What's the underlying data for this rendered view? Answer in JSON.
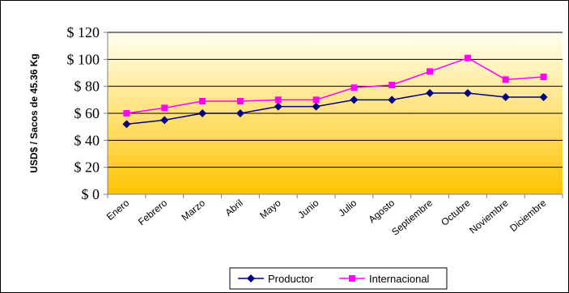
{
  "chart_data": {
    "type": "line",
    "title": "",
    "xlabel": "",
    "ylabel": "USD$ / Sacos de 45.36 Kg",
    "ylim": [
      0,
      120
    ],
    "y_ticks": [
      0,
      20,
      40,
      60,
      80,
      100,
      120
    ],
    "y_tick_labels": [
      "$ 0",
      "$ 20",
      "$ 40",
      "$ 60",
      "$ 80",
      "$ 100",
      "$ 120"
    ],
    "grid": true,
    "legend_position": "bottom",
    "categories": [
      "Enero",
      "Febrero",
      "Marzo",
      "Abril",
      "Mayo",
      "Junio",
      "Julio",
      "Agosto",
      "Septiembre",
      "Octubre",
      "Noviembre",
      "Diciembre"
    ],
    "series": [
      {
        "name": "Productor",
        "color": "#000080",
        "marker": "diamond",
        "values": [
          52,
          55,
          60,
          60,
          65,
          65,
          70,
          70,
          75,
          75,
          72,
          72
        ]
      },
      {
        "name": "Internacional",
        "color": "#FF00FF",
        "marker": "square",
        "values": [
          60,
          64,
          69,
          69,
          70,
          70,
          79,
          81,
          91,
          101,
          85,
          87
        ]
      }
    ],
    "background_gradient": [
      "#FFFFF0",
      "#FFC300"
    ]
  }
}
